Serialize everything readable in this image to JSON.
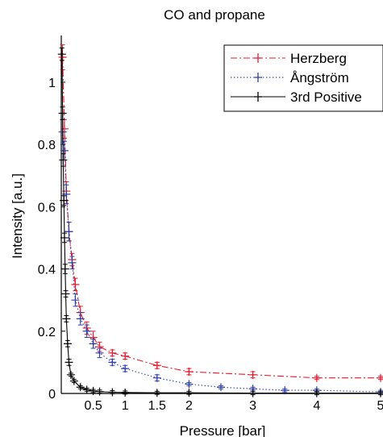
{
  "chart_data": {
    "type": "line",
    "title": "CO and propane",
    "xlabel": "Pressure [bar]",
    "ylabel": "Intensity [a.u.]",
    "xlim": [
      0,
      5
    ],
    "ylim": [
      0,
      1.15
    ],
    "xticks": [
      0.5,
      1,
      1.5,
      2,
      3,
      4,
      5
    ],
    "xtick_labels": [
      "0.5",
      "1",
      "1.5",
      "2",
      "3",
      "4",
      "5"
    ],
    "yticks": [
      0,
      0.2,
      0.4,
      0.6,
      0.8,
      1
    ],
    "ytick_labels": [
      "0",
      "0.2",
      "0.4",
      "0.6",
      "0.8",
      "1"
    ],
    "grid": false,
    "legend_position": "top-right",
    "series": [
      {
        "name": "Herzberg",
        "color": "#e8192c",
        "line_style": "dash-dot",
        "x": [
          0.02,
          0.05,
          0.08,
          0.12,
          0.17,
          0.22,
          0.3,
          0.4,
          0.5,
          0.6,
          0.8,
          1.0,
          1.5,
          2.0,
          3.0,
          4.0,
          5.0
        ],
        "y": [
          1.08,
          0.85,
          0.65,
          0.52,
          0.43,
          0.35,
          0.26,
          0.21,
          0.18,
          0.15,
          0.13,
          0.12,
          0.09,
          0.07,
          0.06,
          0.05,
          0.05
        ],
        "err": [
          0.04,
          0.03,
          0.03,
          0.03,
          0.02,
          0.02,
          0.02,
          0.02,
          0.02,
          0.015,
          0.01,
          0.01,
          0.01,
          0.01,
          0.01,
          0.005,
          0.005
        ]
      },
      {
        "name": "Ångström",
        "color": "#2e3fa8",
        "line_style": "dotted",
        "x": [
          0.02,
          0.05,
          0.08,
          0.12,
          0.17,
          0.22,
          0.3,
          0.4,
          0.5,
          0.6,
          0.8,
          1.0,
          1.5,
          2.0,
          2.5,
          3.0,
          3.5,
          4.0,
          5.0
        ],
        "y": [
          0.84,
          0.78,
          0.64,
          0.52,
          0.42,
          0.3,
          0.24,
          0.2,
          0.16,
          0.13,
          0.1,
          0.08,
          0.05,
          0.03,
          0.02,
          0.015,
          0.01,
          0.01,
          0.005
        ],
        "err": [
          0.04,
          0.03,
          0.03,
          0.03,
          0.02,
          0.02,
          0.02,
          0.02,
          0.015,
          0.015,
          0.01,
          0.01,
          0.01,
          0.005,
          0.005,
          0.005,
          0.005,
          0.005,
          0.005
        ]
      },
      {
        "name": "3rd Positive",
        "color": "#000000",
        "line_style": "solid",
        "x": [
          0.01,
          0.02,
          0.03,
          0.04,
          0.05,
          0.06,
          0.07,
          0.08,
          0.1,
          0.12,
          0.15,
          0.2,
          0.3,
          0.4,
          0.5,
          0.6,
          0.8,
          1.0,
          1.5,
          2.0,
          3.0,
          4.0,
          5.0
        ],
        "y": [
          1.09,
          0.9,
          0.75,
          0.62,
          0.5,
          0.4,
          0.32,
          0.24,
          0.16,
          0.1,
          0.06,
          0.04,
          0.02,
          0.012,
          0.008,
          0.006,
          0.004,
          0.003,
          0.002,
          0.002,
          0.001,
          0.001,
          0.001
        ],
        "err": [
          0.02,
          0.02,
          0.02,
          0.015,
          0.015,
          0.015,
          0.01,
          0.01,
          0.01,
          0.01,
          0.005,
          0.005,
          0.005,
          0.005,
          0.005,
          0.005,
          0.005,
          0.005,
          0.005,
          0.005,
          0.005,
          0.005,
          0.005
        ]
      }
    ]
  }
}
